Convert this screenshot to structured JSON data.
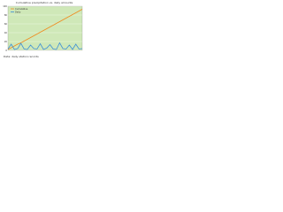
{
  "chart_data": {
    "type": "line",
    "title": "Cumulative precipitation vs. daily amounts",
    "x": [
      1,
      2,
      3,
      4,
      5,
      6,
      7,
      8,
      9,
      10,
      11,
      12,
      13,
      14,
      15,
      16,
      17,
      18,
      19,
      20,
      21,
      22,
      23,
      24
    ],
    "series": [
      {
        "name": "Cumulative",
        "color": "#f08a1c",
        "values": [
          2,
          6,
          10,
          14,
          17,
          21,
          25,
          29,
          33,
          37,
          41,
          45,
          49,
          53,
          57,
          61,
          65,
          69,
          73,
          77,
          81,
          85,
          89,
          93
        ]
      },
      {
        "name": "Daily",
        "color": "#3c8fd8",
        "values": [
          3,
          14,
          2,
          4,
          16,
          3,
          2,
          12,
          4,
          3,
          15,
          2,
          5,
          13,
          3,
          2,
          17,
          4,
          3,
          12,
          2,
          14,
          3,
          4
        ]
      }
    ],
    "xlim": [
      1,
      24
    ],
    "ylim": [
      0,
      100
    ],
    "yticks": [
      0,
      20,
      40,
      60,
      80,
      100
    ],
    "grid": true,
    "footnote": "Data: daily station records"
  }
}
